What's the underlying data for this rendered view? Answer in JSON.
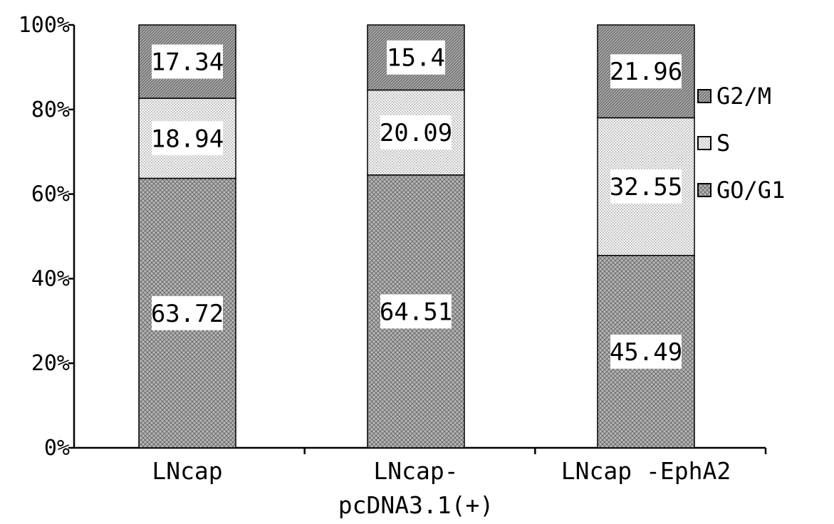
{
  "chart_data": {
    "type": "bar",
    "stacked": true,
    "percent": true,
    "categories": [
      "LNcap",
      "LNcap-\npcDNA3.1(+)",
      "LNcap -EphA2"
    ],
    "series": [
      {
        "name": "GO/G1",
        "values": [
          63.72,
          64.51,
          45.49
        ],
        "labels": [
          "63.72",
          "64.51",
          "45.49"
        ],
        "pattern": "crosshatch",
        "color": "#a6a6a6"
      },
      {
        "name": "S",
        "values": [
          18.94,
          20.09,
          32.55
        ],
        "labels": [
          "18.94",
          "20.09",
          "32.55"
        ],
        "pattern": "dots",
        "color": "#e8e8e8"
      },
      {
        "name": "G2/M",
        "values": [
          17.34,
          15.4,
          21.96
        ],
        "labels": [
          "17.34",
          "15.4",
          "21.96"
        ],
        "pattern": "diagonal",
        "color": "#9a9a9a"
      }
    ],
    "y_ticks": [
      "0%",
      "20%",
      "40%",
      "60%",
      "80%",
      "100%"
    ],
    "ylim": [
      0,
      100
    ],
    "title": "",
    "xlabel": "",
    "ylabel": "",
    "legend_position": "right",
    "grid": false
  }
}
